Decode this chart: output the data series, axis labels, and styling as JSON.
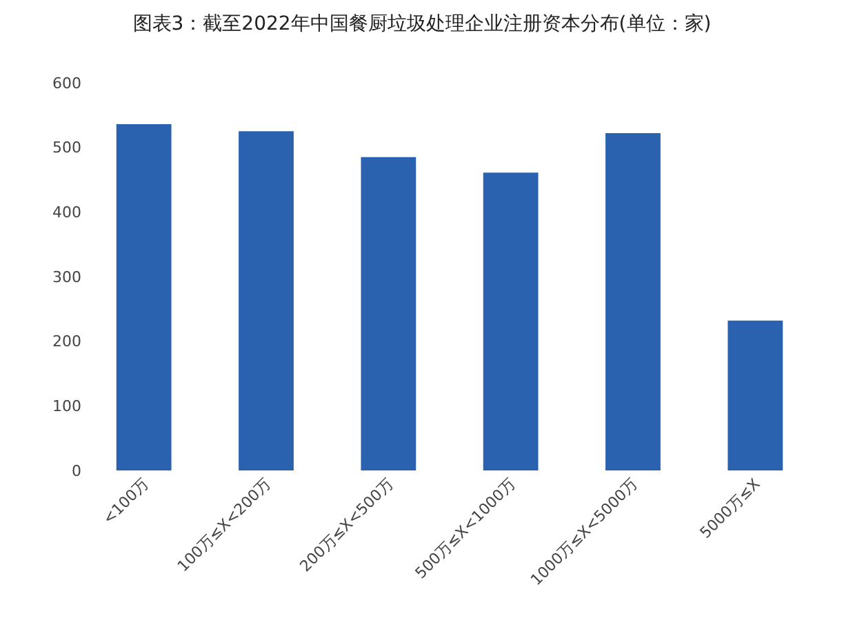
{
  "chart_data": {
    "type": "bar",
    "title": "图表3：截至2022年中国餐厨垃圾处理企业注册资本分布(单位：家)",
    "categories": [
      "<100万",
      "100万≤X<200万",
      "200万≤X<500万",
      "500万≤X<1000万",
      "1000万≤X<5000万",
      "5000万≤X"
    ],
    "values": [
      536,
      525,
      485,
      461,
      522,
      232
    ],
    "color": "#2a62b0",
    "ylim": [
      0,
      600
    ],
    "yticks": [
      0,
      100,
      200,
      300,
      400,
      500,
      600
    ],
    "grid": false
  }
}
